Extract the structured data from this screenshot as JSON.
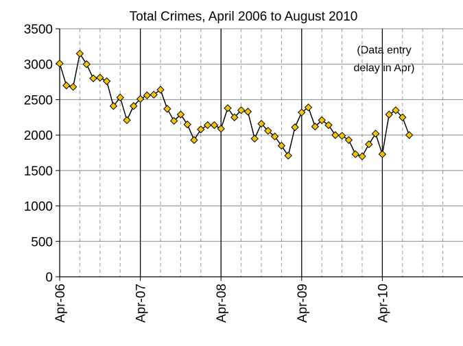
{
  "chart_data": {
    "type": "line",
    "title": "Total Crimes, April 2006 to August 2010",
    "categories": [
      "Apr-06",
      null,
      null,
      null,
      null,
      null,
      null,
      null,
      null,
      null,
      null,
      null,
      "Apr-07",
      null,
      null,
      null,
      null,
      null,
      null,
      null,
      null,
      null,
      null,
      null,
      "Apr-08",
      null,
      null,
      null,
      null,
      null,
      null,
      null,
      null,
      null,
      null,
      null,
      "Apr-09",
      null,
      null,
      null,
      null,
      null,
      null,
      null,
      null,
      null,
      null,
      null,
      "Apr-10",
      null,
      null,
      null,
      null
    ],
    "values": [
      3010,
      2700,
      2680,
      3150,
      3000,
      2800,
      2810,
      2760,
      2410,
      2530,
      2210,
      2410,
      2510,
      2560,
      2570,
      2640,
      2370,
      2200,
      2290,
      2150,
      1930,
      2080,
      2140,
      2140,
      2090,
      2380,
      2250,
      2350,
      2330,
      1950,
      2160,
      2060,
      1980,
      1850,
      1710,
      2110,
      2320,
      2390,
      2120,
      2210,
      2140,
      2000,
      1990,
      1930,
      1730,
      1700,
      1870,
      2020,
      1730,
      2290,
      2350,
      2250,
      2000
    ],
    "color": "#f5c400",
    "ylim": [
      0,
      3500
    ],
    "yticks": [
      0,
      500,
      1000,
      1500,
      2000,
      2500,
      3000,
      3500
    ],
    "grid": true,
    "annotation": [
      "(Data entry",
      "delay in Apr)"
    ]
  }
}
